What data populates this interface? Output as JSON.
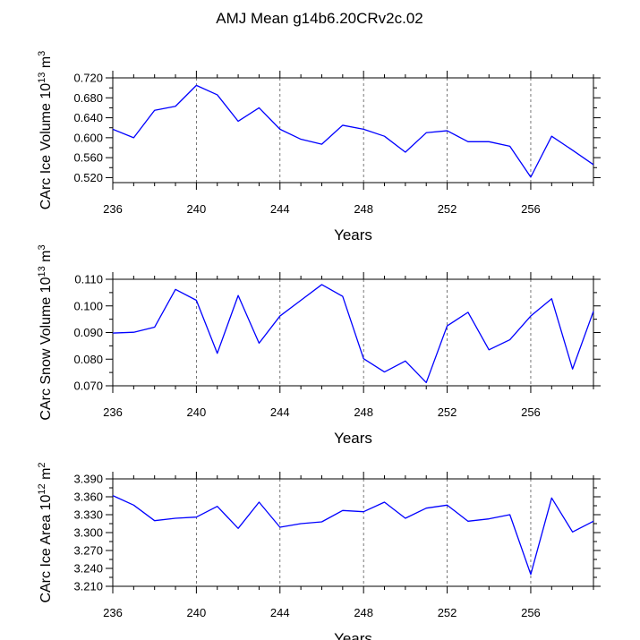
{
  "figure_title": "AMJ Mean g14b6.20CRv2c.02",
  "chart_data": [
    {
      "type": "line",
      "title": "AMJ Mean g14b6.20CRv2c.02",
      "ylabel_text": "CArc Ice Volume 10",
      "ylabel_exp": "13",
      "ylabel_unit": " m",
      "ylabel_unit_exp": "3",
      "xlabel": "Years",
      "xlim": [
        236,
        259
      ],
      "ylim": [
        0.51,
        0.72
      ],
      "yticks": [
        "0.520",
        "0.560",
        "0.600",
        "0.640",
        "0.680",
        "0.720"
      ],
      "xticks": [
        "236",
        "240",
        "244",
        "248",
        "252",
        "256"
      ],
      "x": [
        236,
        237,
        238,
        239,
        240,
        241,
        242,
        243,
        244,
        245,
        246,
        247,
        248,
        249,
        250,
        251,
        252,
        253,
        254,
        255,
        256,
        257,
        258,
        259
      ],
      "series": [
        {
          "name": "CArc Ice Volume",
          "color": "#0000ff",
          "values": [
            0.617,
            0.6,
            0.655,
            0.663,
            0.705,
            0.686,
            0.633,
            0.66,
            0.617,
            0.597,
            0.587,
            0.625,
            0.617,
            0.603,
            0.571,
            0.61,
            0.614,
            0.592,
            0.592,
            0.583,
            0.521,
            0.603,
            0.575,
            0.546
          ]
        }
      ]
    },
    {
      "type": "line",
      "ylabel_text": "CArc Snow Volume 10",
      "ylabel_exp": "13",
      "ylabel_unit": " m",
      "ylabel_unit_exp": "3",
      "xlabel": "Years",
      "xlim": [
        236,
        259
      ],
      "ylim": [
        0.07,
        0.11
      ],
      "yticks": [
        "0.070",
        "0.080",
        "0.090",
        "0.100",
        "0.110"
      ],
      "xticks": [
        "236",
        "240",
        "244",
        "248",
        "252",
        "256"
      ],
      "x": [
        236,
        237,
        238,
        239,
        240,
        241,
        242,
        243,
        244,
        245,
        246,
        247,
        248,
        249,
        250,
        251,
        252,
        253,
        254,
        255,
        256,
        257,
        258,
        259
      ],
      "series": [
        {
          "name": "CArc Snow Volume",
          "color": "#0000ff",
          "values": [
            0.0898,
            0.0901,
            0.092,
            0.1062,
            0.1021,
            0.0822,
            0.1039,
            0.086,
            0.0962,
            0.1021,
            0.108,
            0.1036,
            0.0802,
            0.0752,
            0.0793,
            0.0712,
            0.0925,
            0.0976,
            0.0835,
            0.0873,
            0.0962,
            0.1027,
            0.0763,
            0.098
          ]
        }
      ]
    },
    {
      "type": "line",
      "ylabel_text": "CArc Ice Area 10",
      "ylabel_exp": "12",
      "ylabel_unit": " m",
      "ylabel_unit_exp": "2",
      "xlabel": "Years",
      "xlim": [
        236,
        259
      ],
      "ylim": [
        3.21,
        3.39
      ],
      "yticks": [
        "3.210",
        "3.240",
        "3.270",
        "3.300",
        "3.330",
        "3.360",
        "3.390"
      ],
      "xticks": [
        "236",
        "240",
        "244",
        "248",
        "252",
        "256"
      ],
      "x": [
        236,
        237,
        238,
        239,
        240,
        241,
        242,
        243,
        244,
        245,
        246,
        247,
        248,
        249,
        250,
        251,
        252,
        253,
        254,
        255,
        256,
        257,
        258,
        259
      ],
      "series": [
        {
          "name": "CArc Ice Area",
          "color": "#0000ff",
          "values": [
            3.362,
            3.346,
            3.32,
            3.324,
            3.326,
            3.344,
            3.307,
            3.351,
            3.309,
            3.315,
            3.318,
            3.337,
            3.335,
            3.351,
            3.324,
            3.341,
            3.346,
            3.319,
            3.323,
            3.33,
            3.23,
            3.358,
            3.301,
            3.319
          ]
        }
      ]
    }
  ]
}
